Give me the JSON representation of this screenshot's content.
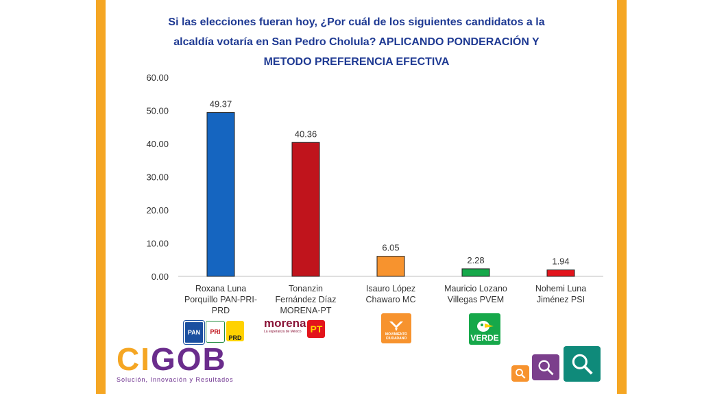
{
  "title_lines": [
    "Si las elecciones fueran hoy, ¿Por cuál de los siguientes candidatos a la",
    "alcaldía votaría en San Pedro Cholula? APLICANDO PONDERACIÓN Y",
    "METODO PREFERENCIA EFECTIVA"
  ],
  "chart_data": {
    "type": "bar",
    "title": "Si las elecciones fueran hoy, ¿Por cuál de los siguientes candidatos a la alcaldía votaría en San Pedro Cholula? APLICANDO PONDERACIÓN Y METODO PREFERENCIA EFECTIVA",
    "categories": [
      "Roxana Luna Porquillo PAN-PRI-PRD",
      "Tonanzin Fernández Díaz MORENA-PT",
      "Isauro López Chawaro MC",
      "Mauricio Lozano Villegas PVEM",
      "Nohemi Luna Jiménez PSI"
    ],
    "category_lines": [
      [
        "Roxana Luna",
        "Porquillo PAN-PRI-",
        "PRD"
      ],
      [
        "Tonanzin",
        "Fernández Díaz",
        "MORENA-PT"
      ],
      [
        "Isauro López",
        "Chawaro MC"
      ],
      [
        "Mauricio Lozano",
        "Villegas PVEM"
      ],
      [
        "Nohemi Luna",
        "Jiménez PSI"
      ]
    ],
    "values": [
      49.37,
      40.36,
      6.05,
      2.28,
      1.94
    ],
    "value_labels": [
      "49.37",
      "40.36",
      "6.05",
      "2.28",
      "1.94"
    ],
    "colors": [
      "#1565c0",
      "#c0141c",
      "#f7932e",
      "#16a84a",
      "#e3141c"
    ],
    "yticks": [
      "0.00",
      "10.00",
      "20.00",
      "30.00",
      "40.00",
      "50.00",
      "60.00"
    ],
    "ylim": [
      0,
      60
    ],
    "grid": false,
    "xlabel": "",
    "ylabel": ""
  },
  "logos": {
    "pan": "PAN",
    "pri": "PRI",
    "prd": "PRD",
    "morena": "morena",
    "morena_tag": "La esperanza de México",
    "pt": "PT",
    "mc": "MOVIMIENTO CIUDADANO",
    "pvem": "VERDE"
  },
  "brand": {
    "part1": "CI",
    "part2": "GOB",
    "tagline": "Solución, Innovación y Resultados"
  },
  "colors": {
    "title": "#1f3a93",
    "border": "#f5a623",
    "brand_orange": "#f5a623",
    "brand_purple": "#6a2c8c"
  },
  "icons": [
    "magnifier-small-icon",
    "magnifier-medium-icon",
    "magnifier-large-icon"
  ]
}
